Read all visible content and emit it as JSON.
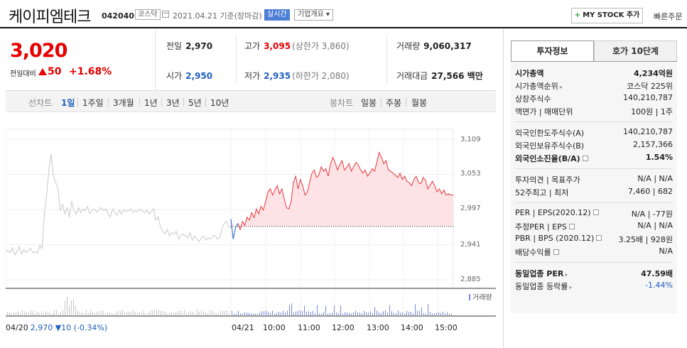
{
  "header": {
    "name": "케이피엠테크",
    "code": "042040",
    "market": "코스닥",
    "date": "2021.04.21 기준(장마감)",
    "realtime": "실시간",
    "overview": "기업개요 ▾",
    "mystock": "MY STOCK 추가",
    "mystock_plus": "+",
    "quick_order": "빠른주문"
  },
  "price": {
    "current": "3,020",
    "prev_label": "전일대비",
    "change": "50",
    "change_pct": "+1.68%",
    "prev_close_label": "전일",
    "prev_close": "2,970",
    "high_label": "고가",
    "high": "3,095",
    "upper_limit": "(상한가 3,860)",
    "volume_label": "거래량",
    "volume": "9,060,317",
    "open_label": "시가",
    "open": "2,950",
    "low_label": "저가",
    "low": "2,935",
    "lower_limit": "(하한가 2,080)",
    "amount_label": "거래대금",
    "amount": "27,566 백만"
  },
  "period_bar": {
    "line_label": "선차트",
    "tabs": [
      "1일",
      "1주일",
      "3개월",
      "1년",
      "3년",
      "5년",
      "10년"
    ],
    "candle_label": "봉차트",
    "candle_tabs": [
      "일봉",
      "주봉",
      "월봉"
    ]
  },
  "chart": {
    "y_ticks": [
      "3,109",
      "3,053",
      "2,997",
      "2,941",
      "2,885"
    ],
    "x_ticks": [
      "04/21",
      "10:00",
      "11:00",
      "12:00",
      "13:00",
      "14:00",
      "15:00"
    ],
    "volume_legend": "거래량",
    "prev_date": "04/20",
    "prev_info": "2,970 ▼10 (-0.34%)"
  },
  "chart_data": {
    "type": "line",
    "ylim": [
      2885,
      3109
    ],
    "baseline": 2970,
    "series": [
      {
        "values": [
          2930,
          2932,
          2928,
          2936,
          2925,
          2930,
          2938,
          2926,
          2933,
          2929,
          2931,
          2935,
          2928,
          2930,
          2927,
          2940,
          2935,
          2990,
          3020,
          3060,
          3085,
          3050,
          3040,
          3030,
          2995,
          3005,
          2990,
          3000,
          2985,
          3010,
          2995,
          2990,
          3000,
          2992,
          2998,
          2995,
          3002,
          2990,
          2996,
          2998,
          2993,
          2997,
          3000,
          2995,
          2998,
          2990,
          2985,
          2998,
          2992,
          2988,
          2996,
          2990,
          2997,
          2994,
          2995,
          2998,
          2992,
          2996,
          2993,
          2998,
          2995,
          2992,
          2996,
          2990,
          2994,
          2998,
          2980,
          2985,
          2970,
          2962,
          2958,
          2965,
          2955,
          2960,
          2958,
          2962,
          2950,
          2956,
          2958,
          2955,
          2952,
          2960,
          2948,
          2955,
          2950,
          2946,
          2952,
          2955,
          2948,
          2952,
          2950,
          2954,
          2956,
          2950,
          2952,
          2965,
          2975,
          2978,
          2970,
          2968
        ]
      },
      {
        "values": [
          2982,
          2950,
          2968,
          2975,
          2965,
          2978,
          2972,
          2985,
          2980,
          2992,
          2984,
          2998,
          2990,
          3002,
          2996,
          3010,
          3025,
          3030,
          3020,
          3028,
          3035,
          3022,
          3030,
          3015,
          3000,
          2998,
          3010,
          3040,
          3050,
          3030,
          3045,
          3035,
          3020,
          3025,
          3040,
          3055,
          3060,
          3048,
          3052,
          3065,
          3058,
          3062,
          3050,
          3070,
          3080,
          3072,
          3060,
          3068,
          3075,
          3060,
          3064,
          3070,
          3058,
          3065,
          3072,
          3068,
          3060,
          3055,
          3060,
          3050,
          3055,
          3062,
          3058,
          3072,
          3088,
          3080,
          3070,
          3075,
          3060,
          3058,
          3055,
          3052,
          3048,
          3055,
          3045,
          3050,
          3042,
          3040,
          3035,
          3045,
          3050,
          3040,
          3038,
          3048,
          3044,
          3030,
          3036,
          3042,
          3035,
          3025,
          3030,
          3022,
          3028,
          3020,
          3022,
          3020,
          3020
        ]
      }
    ]
  },
  "right_panel": {
    "tab_invest": "투자정보",
    "tab_orderbook": "호가 10단계",
    "rows": [
      {
        "k": "시가총액",
        "v": "4,234억원"
      },
      {
        "k": "시가총액순위",
        "v": "코스닥 225위"
      },
      {
        "k": "상장주식수",
        "v": "140,210,787"
      },
      {
        "k": "액면가 | 매매단위",
        "v": "100원 | 1주"
      },
      {
        "k": "외국인한도주식수(A)",
        "v": "140,210,787"
      },
      {
        "k": "외국인보유주식수(B)",
        "v": "2,157,366"
      },
      {
        "k": "외국인소진율(B/A)",
        "v": "1.54%"
      },
      {
        "k": "투자의견 | 목표주가",
        "v": "N/A | N/A"
      },
      {
        "k": "52주최고 | 최저",
        "v": "7,460 | 682"
      },
      {
        "k": "PER | EPS(2020.12)",
        "v": "N/A | -77원"
      },
      {
        "k": "추정PER | EPS",
        "v": "N/A | N/A"
      },
      {
        "k": "PBR | BPS (2020.12)",
        "v": "3.25배 | 928원"
      },
      {
        "k": "배당수익률",
        "v": "N/A"
      },
      {
        "k": "동일업종 PER",
        "v": "47.59배"
      },
      {
        "k": "동일업종 등락률",
        "v": "-1.44%"
      }
    ]
  },
  "colors": {
    "up": "#e60000",
    "down": "#1f5fbf",
    "intraday_line": "#e8383d",
    "prev_line": "#c8c8c8",
    "fill": "#fde3e5",
    "volume": "#7a87d8"
  }
}
